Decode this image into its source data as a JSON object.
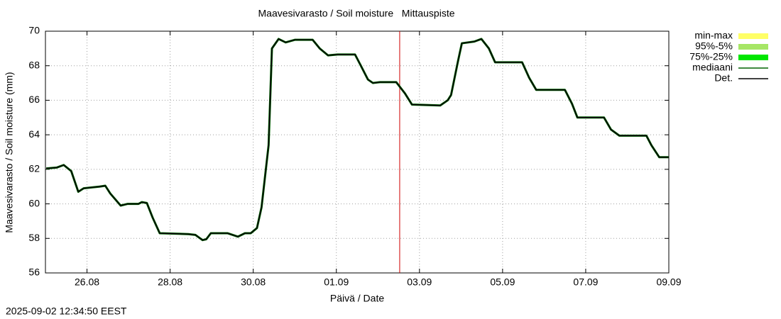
{
  "chart_data": {
    "type": "line",
    "title": "Maavesivarasto / Soil moisture   Mittauspiste",
    "x_label": "Päivä / Date",
    "y_label": "Maavesivarasto / Soil moisture (mm)",
    "timestamp": "2025-09-02 12:34:50 EEST",
    "xlim": [
      0,
      15
    ],
    "ylim": [
      56,
      70
    ],
    "xticks": [
      {
        "value": 1,
        "label": "26.08"
      },
      {
        "value": 3,
        "label": "28.08"
      },
      {
        "value": 5,
        "label": "30.08"
      },
      {
        "value": 7,
        "label": "01.09"
      },
      {
        "value": 9,
        "label": "03.09"
      },
      {
        "value": 11,
        "label": "05.09"
      },
      {
        "value": 13,
        "label": "07.09"
      },
      {
        "value": 15,
        "label": "09.09"
      }
    ],
    "yticks": [
      56,
      58,
      60,
      62,
      64,
      66,
      68,
      70
    ],
    "grid": true,
    "current_time": {
      "x": 8.524,
      "color": "#d00000"
    },
    "legend_bands": [
      {
        "name": "min-max",
        "color": "#ffff66"
      },
      {
        "name": "95%-5%",
        "color": "#a6e665"
      },
      {
        "name": "75%-25%",
        "color": "#00e600"
      }
    ],
    "x": [
      0.02,
      0.27,
      0.44,
      0.62,
      0.79,
      0.92,
      1.3,
      1.44,
      1.56,
      1.81,
      1.98,
      2.24,
      2.32,
      2.44,
      2.58,
      2.75,
      3.44,
      3.61,
      3.78,
      3.87,
      3.98,
      4.38,
      4.63,
      4.8,
      4.94,
      5.09,
      5.2,
      5.37,
      5.45,
      5.61,
      5.78,
      6.0,
      6.43,
      6.6,
      6.8,
      7.03,
      7.45,
      7.59,
      7.76,
      7.88,
      8.05,
      8.44,
      8.65,
      8.82,
      9.5,
      9.68,
      9.76,
      9.93,
      10.02,
      10.32,
      10.49,
      10.67,
      10.82,
      11.47,
      11.64,
      11.81,
      12.5,
      12.67,
      12.8,
      13.44,
      13.61,
      13.81,
      14.46,
      14.58,
      14.77,
      15.0
    ],
    "series": [
      {
        "name": "mediaani",
        "color": "#006400",
        "width": 3,
        "values": [
          62.05,
          62.1,
          62.25,
          61.9,
          60.7,
          60.9,
          61.0,
          61.05,
          60.6,
          59.9,
          60.0,
          60.0,
          60.1,
          60.05,
          59.2,
          58.3,
          58.25,
          58.2,
          57.9,
          57.95,
          58.3,
          58.3,
          58.1,
          58.3,
          58.3,
          58.6,
          59.8,
          63.4,
          69.0,
          69.55,
          69.35,
          69.5,
          69.5,
          69.0,
          68.6,
          68.65,
          68.65,
          68.0,
          67.2,
          67.0,
          67.05,
          67.05,
          66.4,
          65.75,
          65.7,
          66.0,
          66.3,
          68.3,
          69.3,
          69.4,
          69.55,
          69.0,
          68.2,
          68.2,
          67.3,
          66.6,
          66.6,
          65.8,
          65.0,
          65.0,
          64.3,
          63.95,
          63.95,
          63.4,
          62.7,
          62.7
        ]
      },
      {
        "name": "Det.",
        "color": "#000000",
        "width": 1.5,
        "values": [
          62.05,
          62.1,
          62.25,
          61.9,
          60.7,
          60.9,
          61.0,
          61.05,
          60.6,
          59.9,
          60.0,
          60.0,
          60.1,
          60.05,
          59.2,
          58.3,
          58.25,
          58.2,
          57.9,
          57.95,
          58.3,
          58.3,
          58.1,
          58.3,
          58.3,
          58.6,
          59.8,
          63.4,
          69.0,
          69.55,
          69.35,
          69.5,
          69.5,
          69.0,
          68.6,
          68.65,
          68.65,
          68.0,
          67.2,
          67.0,
          67.05,
          67.05,
          66.4,
          65.75,
          65.7,
          66.0,
          66.3,
          68.3,
          69.3,
          69.4,
          69.55,
          69.0,
          68.2,
          68.2,
          67.3,
          66.6,
          66.6,
          65.8,
          65.0,
          65.0,
          64.3,
          63.95,
          63.95,
          63.4,
          62.7,
          62.7
        ]
      }
    ]
  }
}
